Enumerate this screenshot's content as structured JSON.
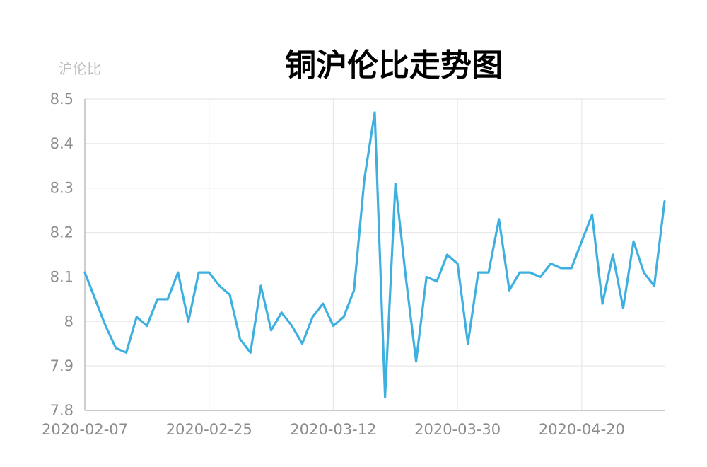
{
  "chart_data": {
    "type": "line",
    "title": "铜沪伦比走势图",
    "ylabel": "沪伦比",
    "xlabel": "",
    "ylim": [
      7.8,
      8.5
    ],
    "y_ticks": [
      "8.5",
      "8.4",
      "8.3",
      "8.2",
      "8.1",
      "8",
      "7.9",
      "7.8"
    ],
    "x_ticks": [
      "2020-02-07",
      "2020-02-25",
      "2020-03-12",
      "2020-03-30",
      "2020-04-20"
    ],
    "x_tick_index": [
      0,
      12,
      24,
      36,
      48
    ],
    "grid": true,
    "series": [
      {
        "name": "",
        "color": "#3eb0e0",
        "values": [
          8.11,
          8.05,
          7.99,
          7.94,
          7.93,
          8.01,
          7.99,
          8.05,
          8.05,
          8.11,
          8.0,
          8.11,
          8.11,
          8.08,
          8.06,
          7.96,
          7.93,
          8.08,
          7.98,
          8.02,
          7.99,
          7.95,
          8.01,
          8.04,
          7.99,
          8.01,
          8.07,
          8.32,
          8.47,
          7.83,
          8.31,
          8.1,
          7.91,
          8.1,
          8.09,
          8.15,
          8.13,
          7.95,
          8.11,
          8.11,
          8.23,
          8.07,
          8.11,
          8.11,
          8.1,
          8.13,
          8.12,
          8.12,
          8.18,
          8.24,
          8.04,
          8.15,
          8.03,
          8.18,
          8.11,
          8.08,
          8.27
        ]
      }
    ]
  }
}
